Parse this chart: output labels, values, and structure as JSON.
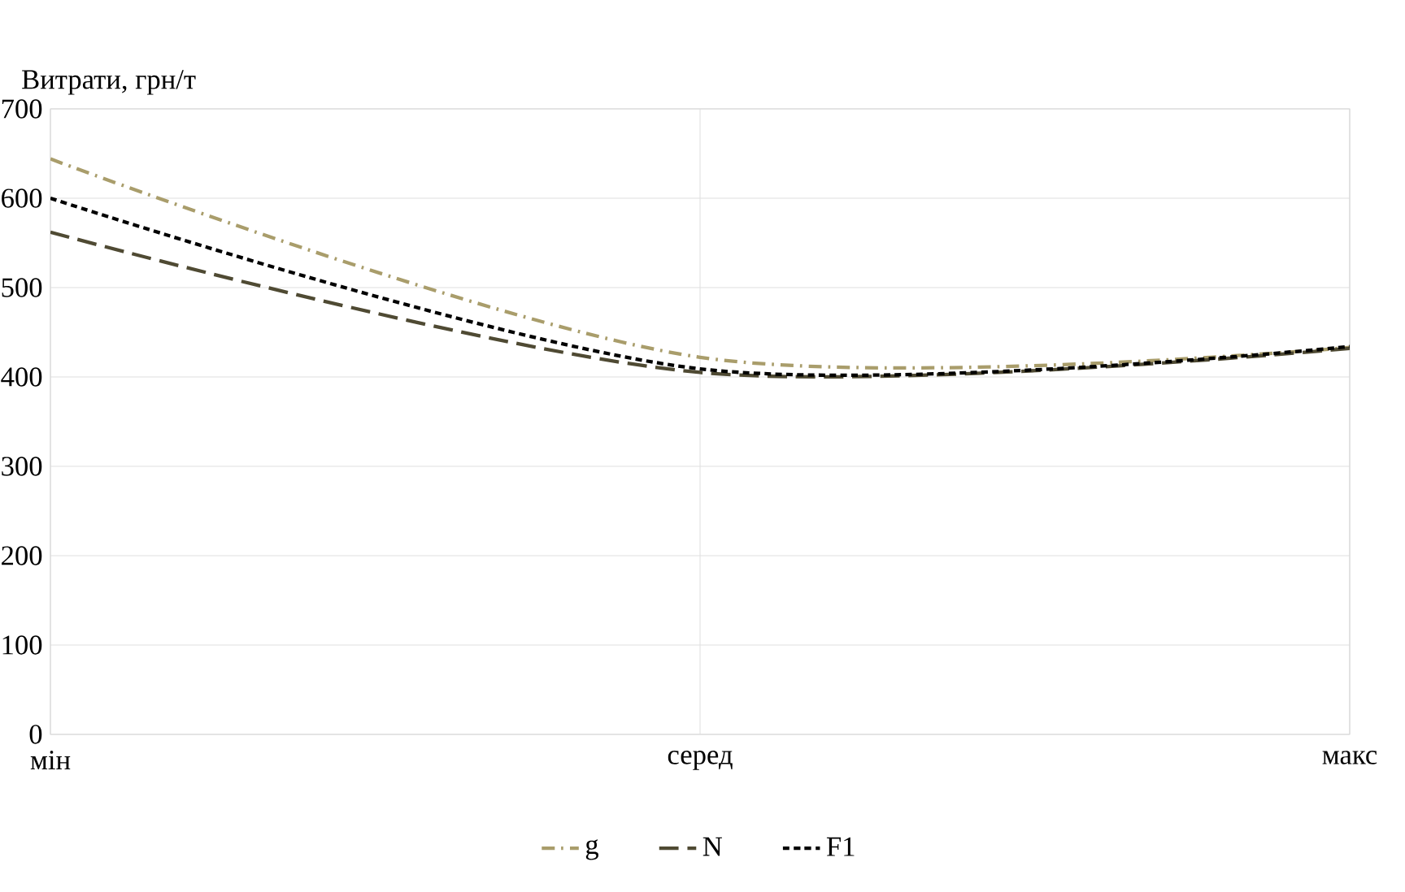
{
  "chart_data": {
    "type": "line",
    "ylabel": "Витрати, грн/т",
    "categories": [
      "мін",
      "серед",
      "макс"
    ],
    "series": [
      {
        "name": "g",
        "color": "#a99d6b",
        "values": [
          644,
          422,
          433
        ],
        "line_style": "dashdot"
      },
      {
        "name": "N",
        "color": "#4f4a33",
        "values": [
          562,
          405,
          432
        ],
        "line_style": "longdashed"
      },
      {
        "name": "F1",
        "color": "#000000",
        "values": [
          600,
          409,
          434
        ],
        "line_style": "dashed"
      }
    ],
    "ylim": [
      0,
      700
    ],
    "yticks": [
      0,
      100,
      200,
      300,
      400,
      500,
      600,
      700
    ],
    "grid": true,
    "legend": "bottom",
    "marker": "none"
  }
}
